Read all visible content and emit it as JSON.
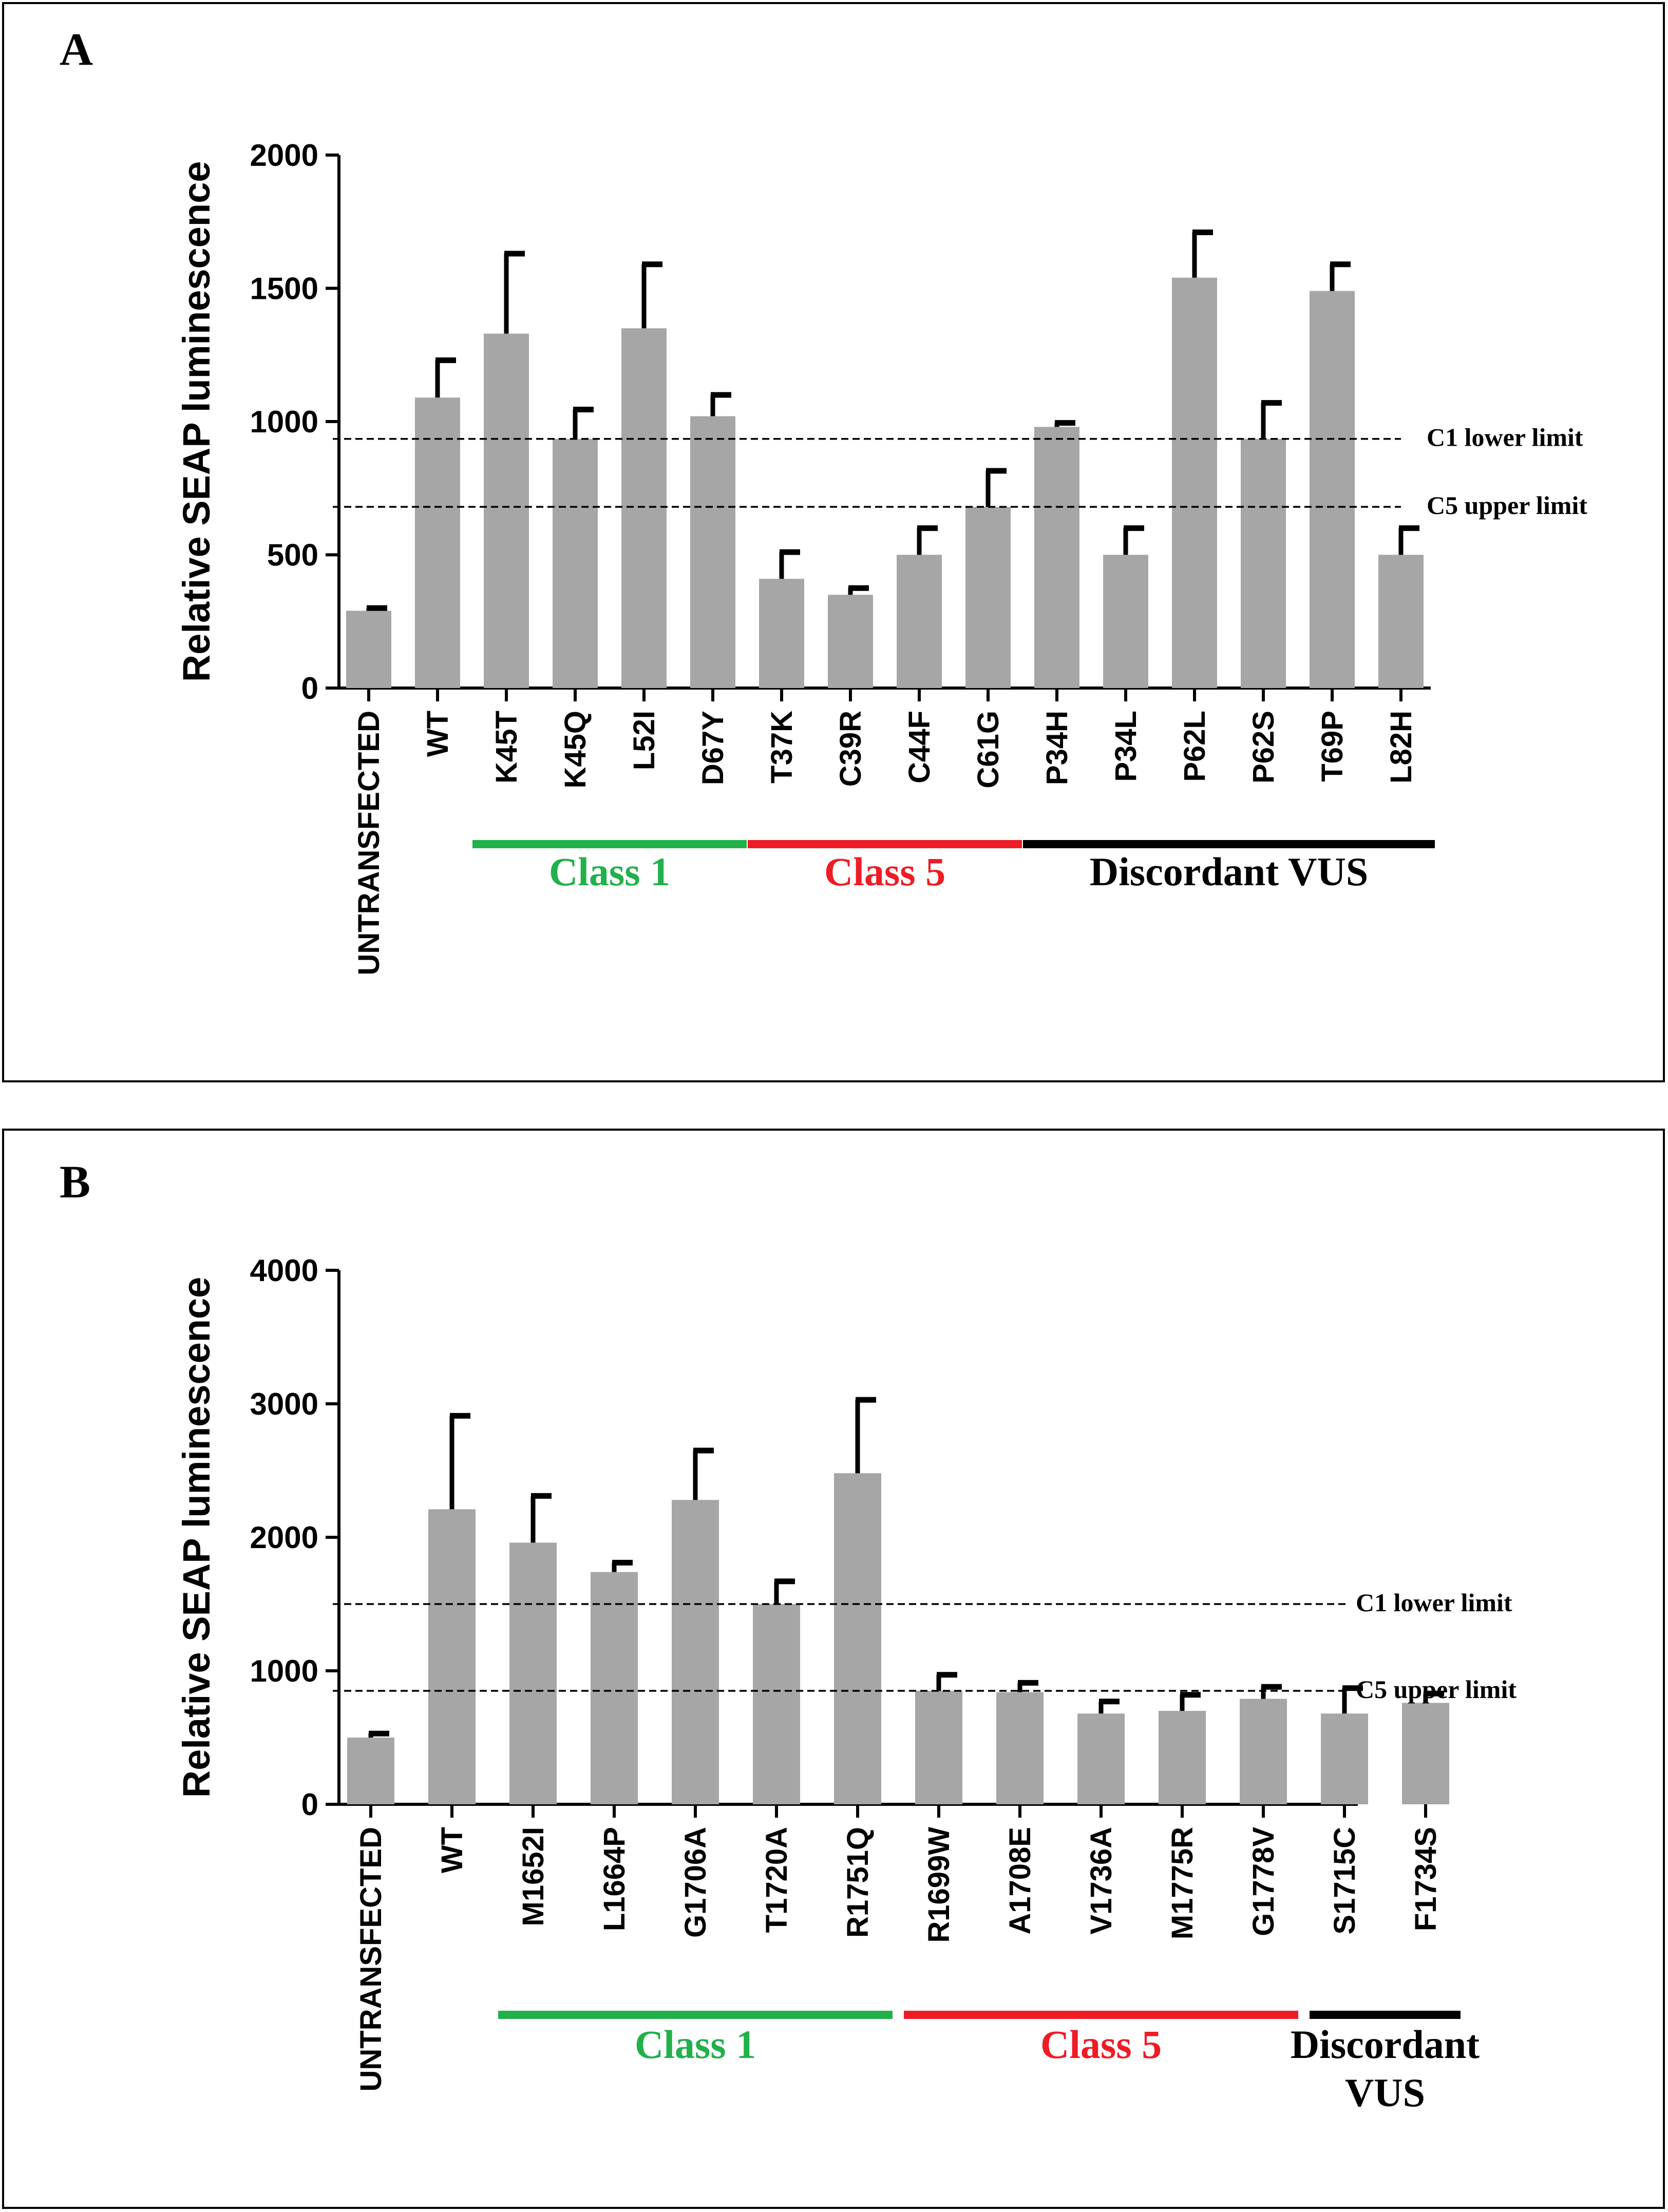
{
  "chart_data": [
    {
      "panel": "A",
      "type": "bar",
      "ylabel": "Relative SEAP luminescence",
      "ylim": [
        0,
        2000
      ],
      "yticks": [
        0,
        500,
        1000,
        1500,
        2000
      ],
      "categories": [
        "UNTRANSFECTED",
        "WT",
        "K45T",
        "K45Q",
        "L52I",
        "D67Y",
        "T37K",
        "C39R",
        "C44F",
        "C61G",
        "P34H",
        "P34L",
        "P62L",
        "P62S",
        "T69P",
        "L82H"
      ],
      "values": [
        290,
        1090,
        1330,
        935,
        1350,
        1020,
        410,
        350,
        500,
        680,
        980,
        500,
        1540,
        935,
        1490,
        500
      ],
      "errors": [
        10,
        140,
        300,
        110,
        240,
        80,
        100,
        25,
        100,
        135,
        15,
        100,
        170,
        135,
        100,
        100
      ],
      "reference_lines": [
        {
          "label": "C1 lower limit",
          "value": 935
        },
        {
          "label": "C5 upper limit",
          "value": 680
        }
      ],
      "groups": [
        {
          "label": "Class 1",
          "start": 2,
          "end": 5,
          "color": "#22b04b"
        },
        {
          "label": "Class 5",
          "start": 6,
          "end": 9,
          "color": "#ee1c24"
        },
        {
          "label": "Discordant VUS",
          "start": 10,
          "end": 15,
          "color": "#000000"
        }
      ]
    },
    {
      "panel": "B",
      "type": "bar",
      "ylabel": "Relative SEAP luminescence",
      "ylim": [
        0,
        4000
      ],
      "yticks": [
        0,
        1000,
        2000,
        3000,
        4000
      ],
      "categories": [
        "UNTRANSFECTED",
        "WT",
        "M1652I",
        "L1664P",
        "G1706A",
        "T1720A",
        "R1751Q",
        "R1699W",
        "A1708E",
        "V1736A",
        "M1775R",
        "G1778V",
        "S1715C",
        "F1734S"
      ],
      "values": [
        500,
        2210,
        1960,
        1740,
        2280,
        1500,
        2480,
        850,
        840,
        680,
        700,
        790,
        680,
        760
      ],
      "errors": [
        30,
        700,
        350,
        70,
        370,
        170,
        550,
        120,
        70,
        90,
        120,
        90,
        190,
        70
      ],
      "reference_lines": [
        {
          "label": "C1 lower limit",
          "value": 1500
        },
        {
          "label": "C5 upper limit",
          "value": 850
        }
      ],
      "groups": [
        {
          "label": "Class 1",
          "start": 2,
          "end": 6,
          "color": "#22b04b"
        },
        {
          "label": "Class 5",
          "start": 7,
          "end": 11,
          "color": "#ee1c24"
        },
        {
          "label": "Discordant VUS",
          "lines": [
            "Discordant",
            "VUS"
          ],
          "start": 12,
          "end": 13,
          "color": "#000000"
        }
      ]
    }
  ]
}
